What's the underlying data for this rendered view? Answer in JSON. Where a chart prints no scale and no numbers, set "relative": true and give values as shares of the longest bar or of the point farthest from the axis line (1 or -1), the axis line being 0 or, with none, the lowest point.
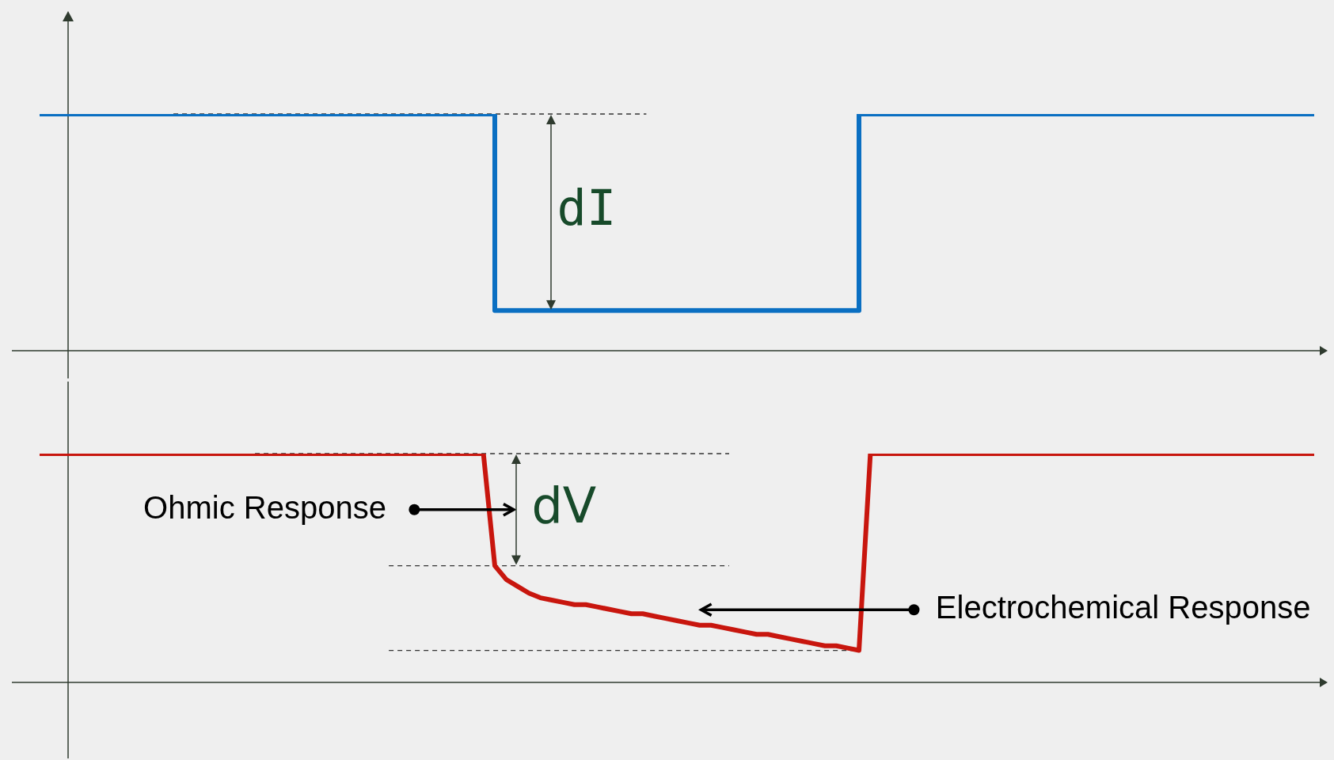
{
  "chart_data": [
    {
      "type": "step",
      "relative": true,
      "legend": false,
      "categories": [
        null,
        null,
        null,
        null,
        null,
        null,
        null,
        null,
        null,
        null,
        null,
        null,
        null,
        null,
        null,
        null,
        null,
        null,
        null,
        null,
        null,
        null,
        null,
        null,
        null,
        null,
        null,
        null,
        null
      ],
      "series": [
        {
          "color": "#0a6fc2",
          "values": [
            1,
            1,
            1,
            1,
            1,
            1,
            1,
            1,
            1,
            1,
            0.17,
            0.17,
            0.17,
            0.17,
            0.17,
            0.17,
            0.17,
            0.17,
            1,
            1,
            1,
            1,
            1,
            1,
            1,
            1,
            1,
            1,
            1
          ]
        }
      ],
      "ref_lines": [
        {
          "axis": "y",
          "value": 1,
          "line_style": "dashed",
          "color": "#333333"
        }
      ],
      "annotations": [
        "dI"
      ]
    },
    {
      "type": "line",
      "relative": true,
      "legend": false,
      "categories": [
        null,
        null,
        null,
        null,
        null,
        null,
        null,
        null,
        null,
        null,
        null,
        null,
        null,
        null,
        null,
        null,
        null,
        null,
        null,
        null,
        null,
        null,
        null,
        null,
        null,
        null,
        null,
        null,
        null,
        null,
        null,
        null,
        null,
        null,
        null,
        null,
        null,
        null,
        null,
        null,
        null,
        null,
        null,
        null,
        null,
        null,
        null,
        null,
        null,
        null,
        null,
        null,
        null,
        null,
        null,
        null,
        null,
        null,
        null,
        null,
        null,
        null,
        null,
        null,
        null,
        null,
        null,
        null,
        null,
        null,
        null,
        null,
        null,
        null,
        null,
        null,
        null,
        null,
        null,
        null,
        null,
        null,
        null,
        null,
        null,
        null,
        null,
        null,
        null,
        null,
        null,
        null,
        null,
        null,
        null,
        null,
        null,
        null,
        null,
        null,
        null,
        null,
        null,
        null,
        null,
        null,
        null,
        null,
        null,
        null,
        null,
        null,
        null
      ],
      "series": [
        {
          "color": "#c8160e",
          "values": [
            1,
            1,
            1,
            1,
            1,
            1,
            1,
            1,
            1,
            1,
            1,
            1,
            1,
            1,
            1,
            1,
            1,
            1,
            1,
            1,
            1,
            1,
            1,
            1,
            1,
            1,
            1,
            1,
            1,
            1,
            1,
            1,
            1,
            1,
            1,
            1,
            1,
            1,
            1,
            1,
            0.51,
            0.45,
            0.42,
            0.39,
            0.37,
            0.36,
            0.35,
            0.34,
            0.34,
            0.33,
            0.32,
            0.31,
            0.3,
            0.3,
            0.29,
            0.28,
            0.27,
            0.26,
            0.25,
            0.25,
            0.24,
            0.23,
            0.22,
            0.21,
            0.21,
            0.2,
            0.19,
            0.18,
            0.17,
            0.16,
            0.16,
            0.15,
            0.14,
            1,
            1,
            1,
            1,
            1,
            1,
            1,
            1,
            1,
            1,
            1,
            1,
            1,
            1,
            1,
            1,
            1,
            1,
            1,
            1,
            1,
            1,
            1,
            1,
            1,
            1,
            1,
            1,
            1,
            1,
            1,
            1,
            1,
            1,
            1,
            1,
            1,
            1,
            1,
            1
          ]
        }
      ],
      "ref_lines": [
        {
          "axis": "y",
          "value": 1,
          "line_style": "dashed",
          "color": "#333333"
        },
        {
          "axis": "y",
          "value": 0.51,
          "line_style": "dashed",
          "color": "#333333"
        },
        {
          "axis": "y",
          "value": 0.14,
          "line_style": "dashed",
          "color": "#333333"
        }
      ],
      "annotations": [
        "dV",
        "Ohmic Response",
        "Electrochemical Response"
      ]
    }
  ]
}
